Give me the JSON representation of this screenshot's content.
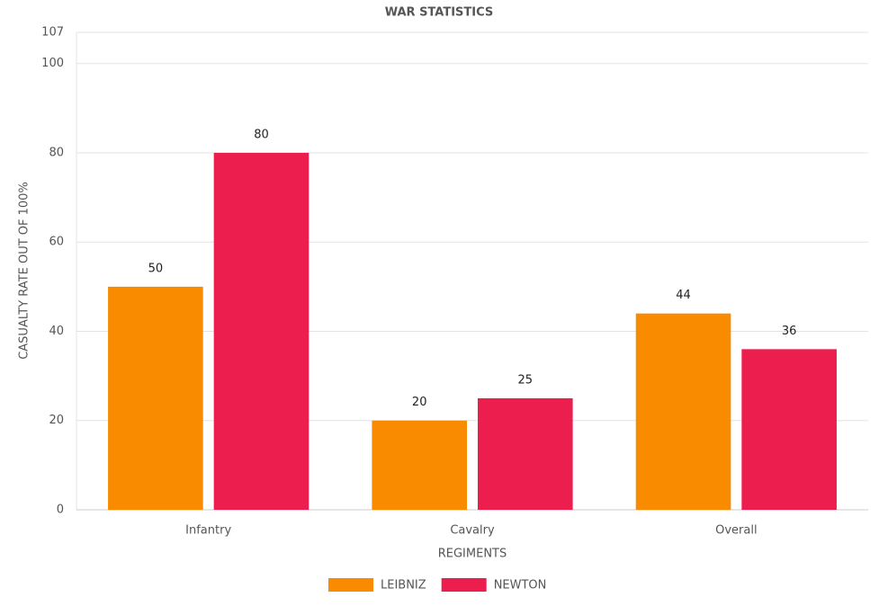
{
  "chart_data": {
    "type": "bar",
    "title": "WAR STATISTICS",
    "x_label": "REGIMENTS",
    "y_label": "CASUALTY RATE OUT OF 100%",
    "categories": [
      "Infantry",
      "Cavalry",
      "Overall"
    ],
    "series": [
      {
        "name": "LEIBNIZ",
        "color": "#f98b00",
        "values": [
          50,
          20,
          44
        ]
      },
      {
        "name": "NEWTON",
        "color": "#eb1e4e",
        "values": [
          80,
          25,
          36
        ]
      }
    ],
    "ylim": [
      0,
      107
    ],
    "yticks": [
      0,
      20,
      40,
      60,
      80,
      100,
      107
    ],
    "grid": true,
    "legend": "bottom"
  }
}
